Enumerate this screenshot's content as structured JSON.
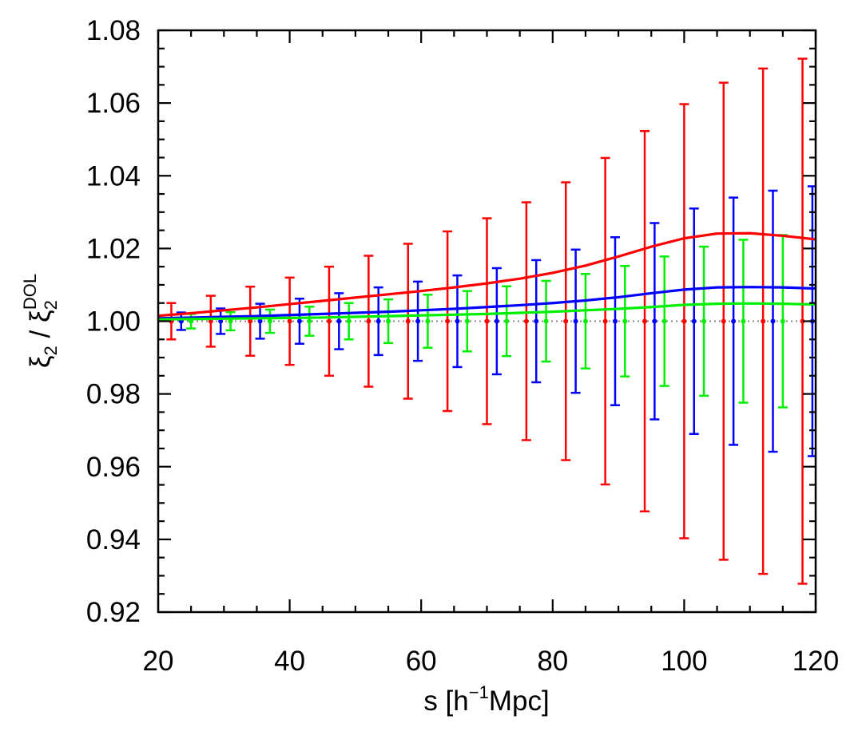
{
  "chart_data": {
    "type": "line",
    "title": "",
    "xlabel": {
      "base": "s [h",
      "sup": "−1",
      "tail": "Mpc]"
    },
    "ylabel": {
      "num": "ξ",
      "num_sub": "2",
      "sep": " / ",
      "den": "ξ",
      "den_sub": "2",
      "den_sup": "DOL"
    },
    "xlim": [
      20,
      120
    ],
    "ylim": [
      0.92,
      1.08
    ],
    "xticks": [
      20,
      40,
      60,
      80,
      100,
      120
    ],
    "xtick_labels": [
      "20",
      "40",
      "60",
      "80",
      "100",
      "120"
    ],
    "yticks": [
      0.92,
      0.94,
      0.96,
      0.98,
      1.0,
      1.02,
      1.04,
      1.06,
      1.08
    ],
    "ytick_labels": [
      "0.92",
      "0.94",
      "0.96",
      "0.98",
      "1.00",
      "1.02",
      "1.04",
      "1.06",
      "1.08"
    ],
    "reference_line": {
      "y": 1.0,
      "style": "dotted",
      "color": "#888888"
    },
    "series": [
      {
        "name": "red",
        "color": "#ff0000",
        "curve": {
          "x": [
            20,
            25,
            30,
            35,
            40,
            45,
            50,
            55,
            60,
            65,
            70,
            75,
            80,
            85,
            90,
            95,
            100,
            105,
            110,
            115,
            120
          ],
          "y": [
            1.0015,
            1.0022,
            1.003,
            1.0038,
            1.0047,
            1.0056,
            1.0065,
            1.0074,
            1.0083,
            1.0093,
            1.0104,
            1.0117,
            1.0133,
            1.0153,
            1.0178,
            1.0205,
            1.0228,
            1.0241,
            1.0242,
            1.0235,
            1.0225
          ]
        },
        "points": {
          "x": [
            22,
            28,
            34,
            40,
            46,
            52,
            58,
            64,
            70,
            76,
            82,
            88,
            94,
            100,
            106,
            112,
            118
          ],
          "y": [
            1.0,
            1.0,
            1.0,
            1.0,
            1.0,
            1.0,
            1.0,
            1.0,
            1.0,
            1.0,
            1.0,
            1.0,
            1.0,
            1.0,
            1.0,
            1.0,
            1.0
          ],
          "err": [
            0.005,
            0.007,
            0.0095,
            0.012,
            0.015,
            0.018,
            0.0213,
            0.0247,
            0.0283,
            0.0327,
            0.0382,
            0.0449,
            0.0523,
            0.0597,
            0.0656,
            0.0695,
            0.0722
          ]
        }
      },
      {
        "name": "blue",
        "color": "#0000ff",
        "curve": {
          "x": [
            20,
            25,
            30,
            35,
            40,
            45,
            50,
            55,
            60,
            65,
            70,
            75,
            80,
            85,
            90,
            95,
            100,
            105,
            110,
            115,
            120
          ],
          "y": [
            1.0008,
            1.001,
            1.0012,
            1.0014,
            1.0017,
            1.002,
            1.0023,
            1.0026,
            1.003,
            1.0034,
            1.0039,
            1.0044,
            1.005,
            1.0057,
            1.0066,
            1.0077,
            1.0087,
            1.0093,
            1.0094,
            1.0093,
            1.009
          ]
        },
        "points": {
          "x": [
            23.5,
            29.5,
            35.5,
            41.5,
            47.5,
            53.5,
            59.5,
            65.5,
            71.5,
            77.5,
            83.5,
            89.5,
            95.5,
            101.5,
            107.5,
            113.5,
            119.5
          ],
          "y": [
            1.0,
            1.0,
            1.0,
            1.0,
            1.0,
            1.0,
            1.0,
            1.0,
            1.0,
            1.0,
            1.0,
            1.0,
            1.0,
            1.0,
            1.0,
            1.0,
            1.0
          ],
          "err": [
            0.0024,
            0.0035,
            0.0048,
            0.0062,
            0.0077,
            0.0093,
            0.0109,
            0.0126,
            0.0146,
            0.0168,
            0.0197,
            0.0231,
            0.027,
            0.031,
            0.034,
            0.0359,
            0.0371
          ]
        }
      },
      {
        "name": "green",
        "color": "#00ee00",
        "curve": {
          "x": [
            20,
            25,
            30,
            35,
            40,
            45,
            50,
            55,
            60,
            65,
            70,
            75,
            80,
            85,
            90,
            95,
            100,
            105,
            110,
            115,
            120
          ],
          "y": [
            1.0005,
            1.0006,
            1.0007,
            1.0008,
            1.0009,
            1.001,
            1.0012,
            1.0014,
            1.0016,
            1.0018,
            1.002,
            1.0023,
            1.0026,
            1.003,
            1.0034,
            1.0039,
            1.0045,
            1.0048,
            1.0049,
            1.0048,
            1.0046
          ]
        },
        "points": {
          "x": [
            25,
            31,
            37,
            43,
            49,
            55,
            61,
            67,
            73,
            79,
            85,
            91,
            97,
            103,
            109,
            115
          ],
          "y": [
            1.0,
            1.0,
            1.0,
            1.0,
            1.0,
            1.0,
            1.0,
            1.0,
            1.0,
            1.0,
            1.0,
            1.0,
            1.0,
            1.0,
            1.0,
            1.0
          ],
          "err": [
            0.002,
            0.0025,
            0.0032,
            0.004,
            0.005,
            0.006,
            0.0073,
            0.0083,
            0.0096,
            0.0111,
            0.013,
            0.0152,
            0.0178,
            0.0205,
            0.0224,
            0.0237
          ]
        }
      }
    ]
  }
}
